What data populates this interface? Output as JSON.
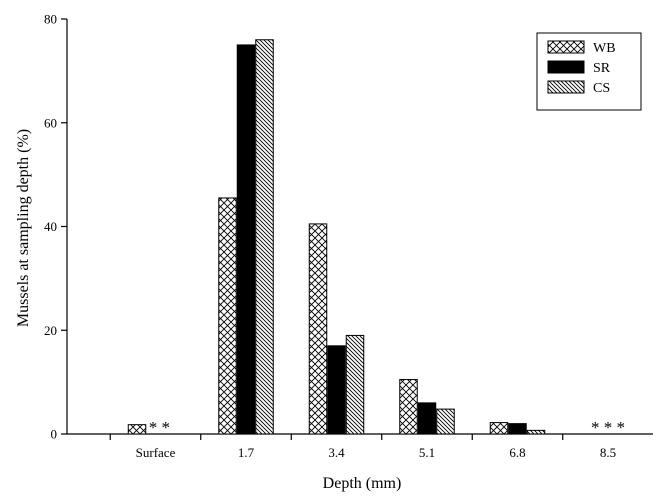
{
  "chart_data": {
    "type": "bar",
    "xlabel": "Depth (mm)",
    "ylabel": "Mussels at sampling depth (%)",
    "ylim": [
      0,
      80
    ],
    "yticks": [
      0,
      20,
      40,
      60,
      80
    ],
    "categories": [
      "Surface",
      "1.7",
      "3.4",
      "5.1",
      "6.8",
      "8.5"
    ],
    "series": [
      {
        "name": "WB",
        "pattern": "crosshatch",
        "values": [
          1.8,
          45.5,
          40.5,
          10.5,
          2.2,
          0
        ]
      },
      {
        "name": "SR",
        "pattern": "solid",
        "values": [
          0,
          75,
          17,
          6,
          2,
          0
        ]
      },
      {
        "name": "CS",
        "pattern": "diagonal",
        "values": [
          0,
          76,
          19,
          4.8,
          0.7,
          0
        ]
      }
    ],
    "annotations": [
      {
        "category": "Surface",
        "text": "* *"
      },
      {
        "category": "8.5",
        "text": "* * *"
      }
    ],
    "legend_position": "top-right",
    "grid": false
  }
}
